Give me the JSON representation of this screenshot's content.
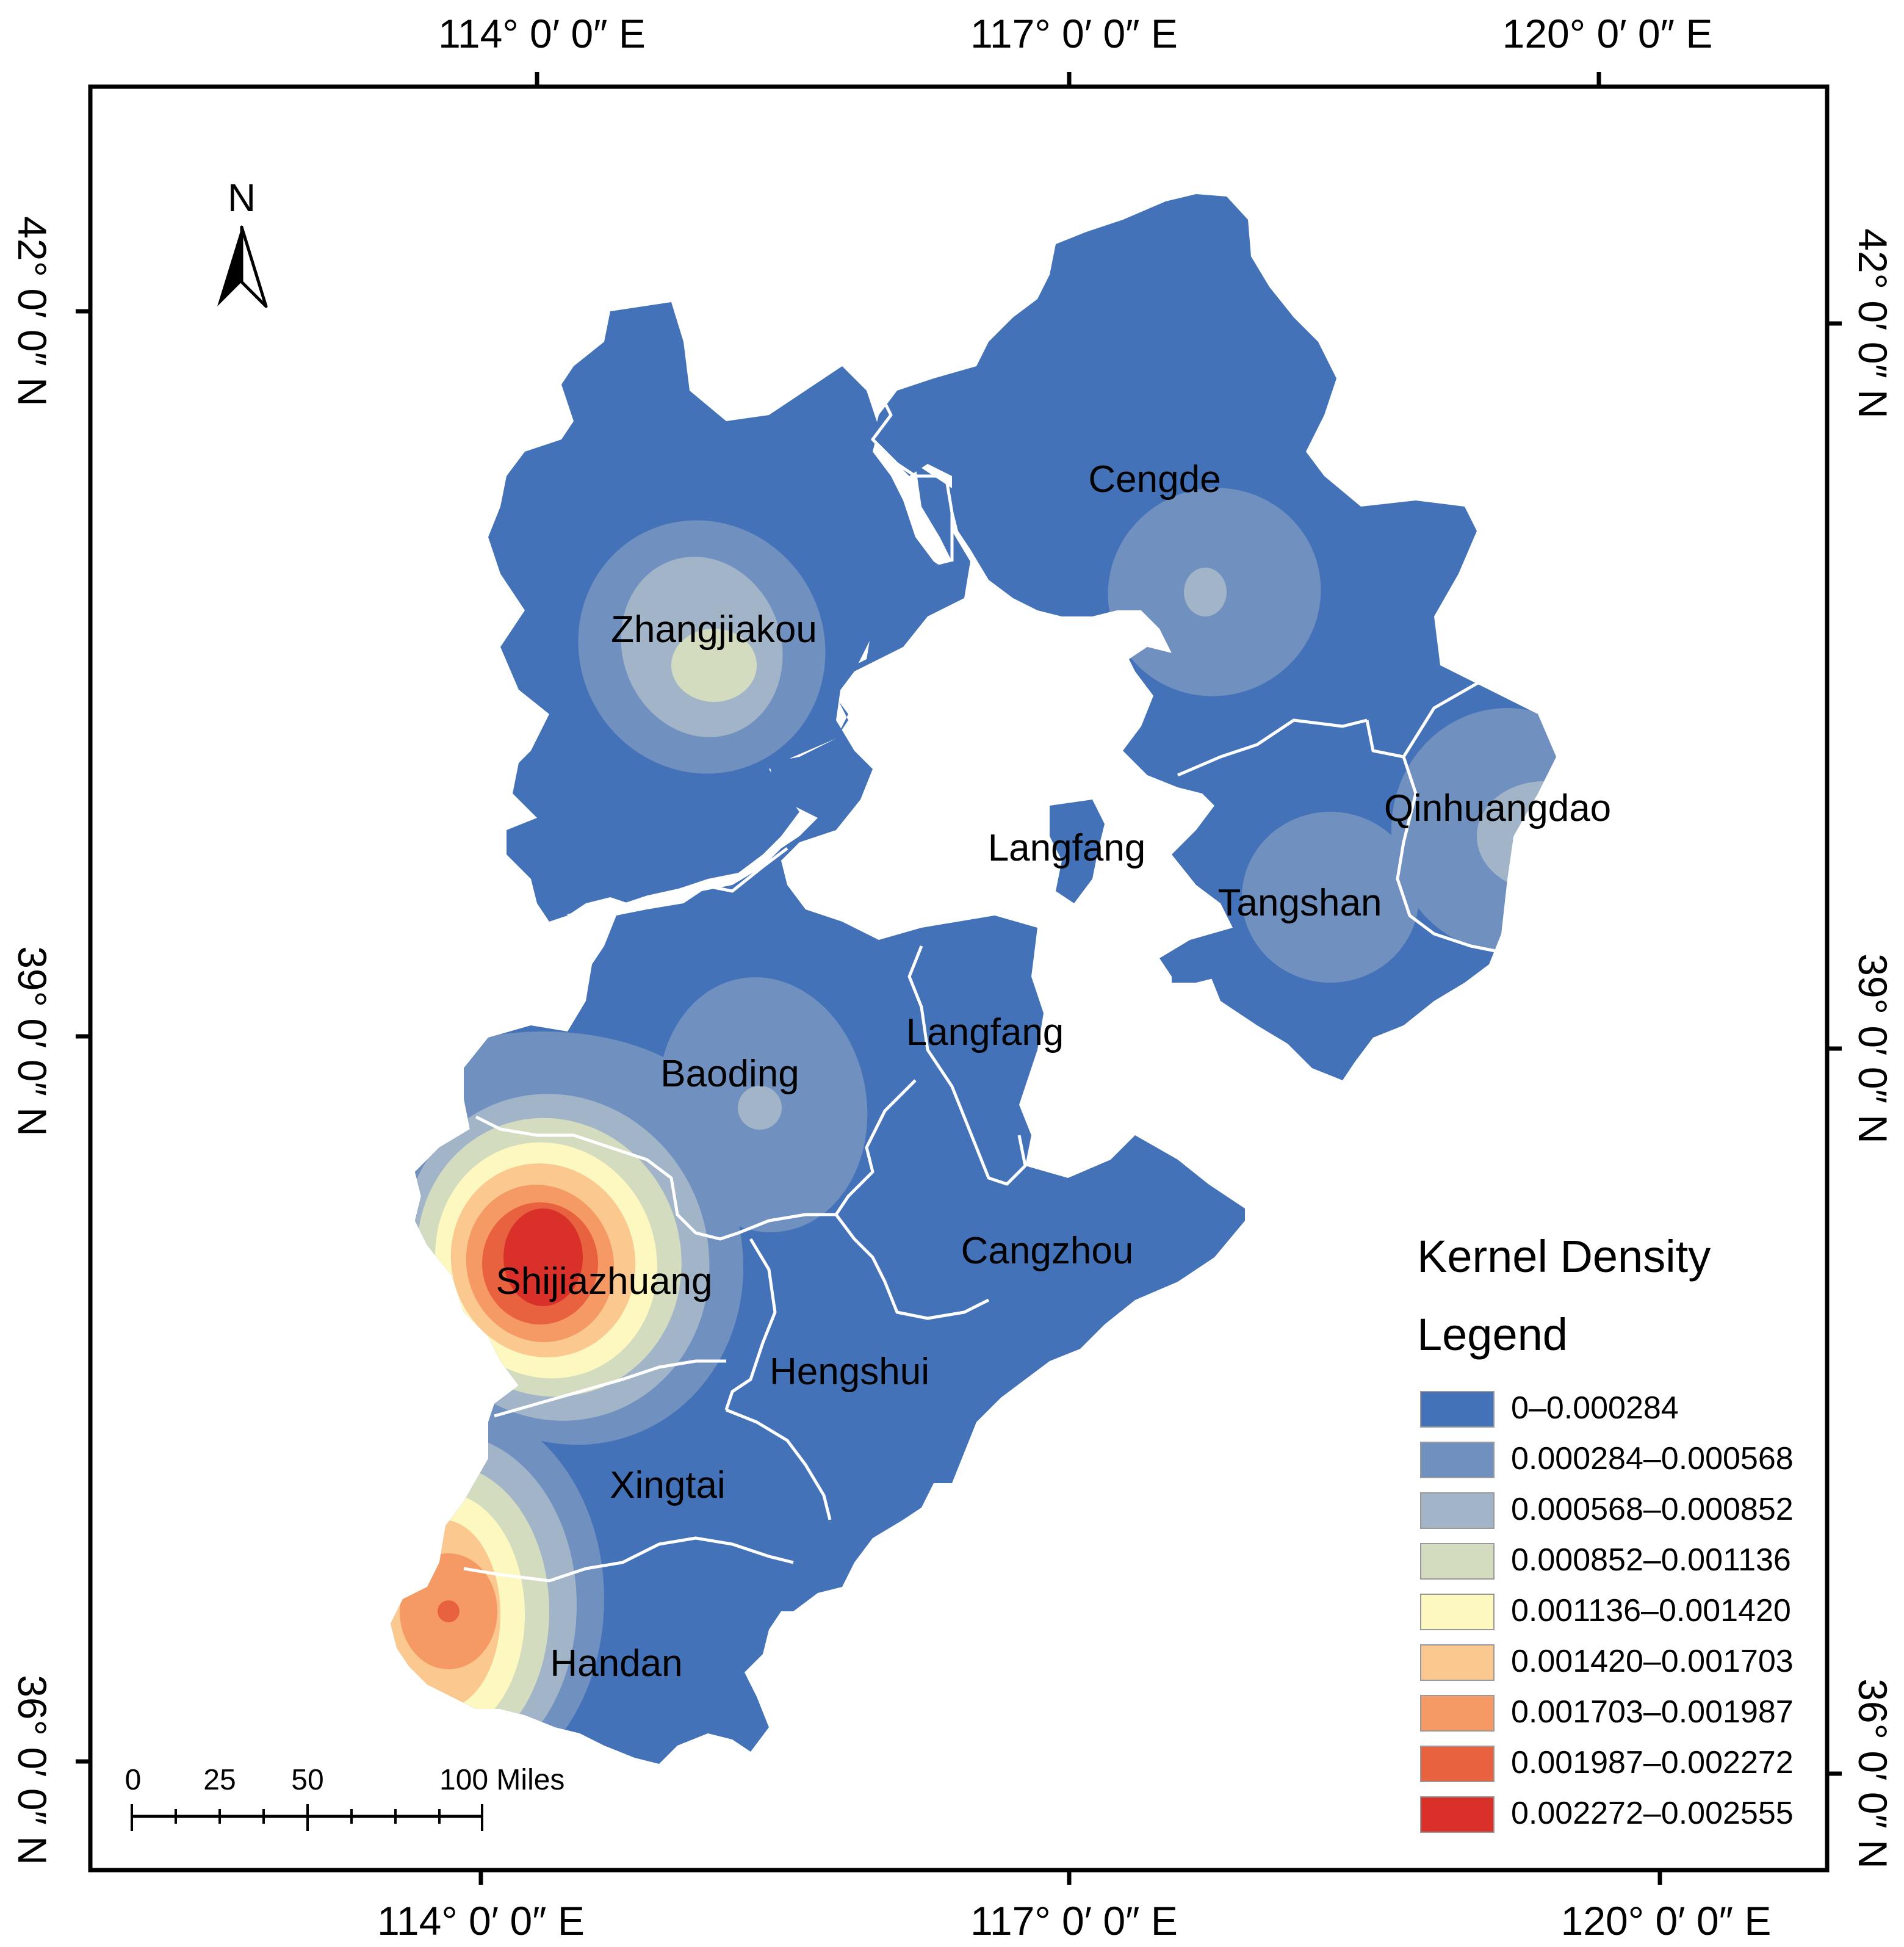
{
  "map": {
    "top_axis": [
      "114° 0′ 0″ E",
      "117° 0′ 0″ E",
      "120° 0′ 0″ E"
    ],
    "bottom_axis": [
      "114° 0′ 0″ E",
      "117° 0′ 0″ E",
      "120° 0′ 0″ E"
    ],
    "left_axis": [
      "42° 0′ 0″ N",
      "39° 0′ 0″ N",
      "36° 0′ 0″ N"
    ],
    "right_axis": [
      "42° 0′ 0″ N",
      "39° 0′ 0″ N",
      "36° 0′ 0″ N"
    ],
    "north_label": "N",
    "cities": {
      "zhangjiakou": "Zhangjiakou",
      "cengde": "Cengde",
      "langfang_north": "Langfang",
      "qinhuangdao": "Qinhuangdao",
      "tangshan": "Tangshan",
      "baoding": "Baoding",
      "langfang_south": "Langfang",
      "cangzhou": "Cangzhou",
      "shijiazhuang": "Shijiazhuang",
      "hengshui": "Hengshui",
      "xingtai": "Xingtai",
      "handan": "Handan"
    },
    "scale_bar": {
      "labels": [
        "0",
        "25",
        "50",
        "100 Miles"
      ]
    }
  },
  "legend": {
    "title_line1": "Kernel Density",
    "title_line2": "Legend",
    "items": [
      {
        "label": "0–0.000284",
        "color": "#4472b8"
      },
      {
        "label": "0.000284–0.000568",
        "color": "#7090c0"
      },
      {
        "label": "0.000568–0.000852",
        "color": "#a2b4c8"
      },
      {
        "label": "0.000852–0.001136",
        "color": "#d4dcc0"
      },
      {
        "label": "0.001136–0.001420",
        "color": "#fdf8c0"
      },
      {
        "label": "0.001420–0.001703",
        "color": "#fbc890"
      },
      {
        "label": "0.001703–0.001987",
        "color": "#f59a64"
      },
      {
        "label": "0.001987–0.002272",
        "color": "#e9623f"
      },
      {
        "label": "0.002272–0.002555",
        "color": "#d9302a"
      }
    ]
  }
}
